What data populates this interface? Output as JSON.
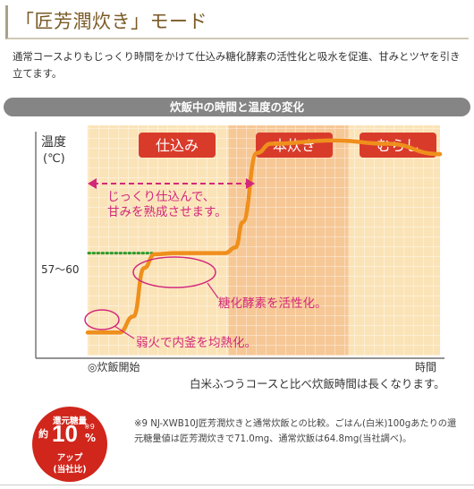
{
  "header": {
    "title": "「匠芳潤炊き」モード",
    "lead": "通常コースよりもじっくり時間をかけて仕込み糖化酵素の活性化と吸水を促進、甘みとツヤを引き立てます。"
  },
  "section_band": "炊飯中の時間と温度の変化",
  "chart_data": {
    "type": "line",
    "ylabel_line1": "温度",
    "ylabel_line2": "(℃)",
    "xlabel": "時間",
    "x_start_label": "◎炊飯開始",
    "y_marker_label": "57〜60",
    "phases": [
      {
        "label": "仕込み",
        "color": "#fbe3b8"
      },
      {
        "label": "本炊き",
        "color": "#f6c896"
      },
      {
        "label": "むらし",
        "color": "#fbe3b8"
      }
    ],
    "curve": [
      {
        "x": 0,
        "y": 0.1
      },
      {
        "x": 0.09,
        "y": 0.1
      },
      {
        "x": 0.13,
        "y": 0.17
      },
      {
        "x": 0.16,
        "y": 0.38
      },
      {
        "x": 0.19,
        "y": 0.44
      },
      {
        "x": 0.25,
        "y": 0.445
      },
      {
        "x": 0.39,
        "y": 0.445
      },
      {
        "x": 0.42,
        "y": 0.47
      },
      {
        "x": 0.44,
        "y": 0.58
      },
      {
        "x": 0.48,
        "y": 0.88
      },
      {
        "x": 0.52,
        "y": 0.92
      },
      {
        "x": 0.7,
        "y": 0.935
      },
      {
        "x": 0.85,
        "y": 0.92
      },
      {
        "x": 1.0,
        "y": 0.875
      }
    ],
    "annotations": [
      "じっくり仕込んで、",
      "甘みを熟成させます。",
      "糖化酵素を活性化。",
      "弱火で内釜を均熱化。"
    ],
    "colors": {
      "curve": "#ef8f1c",
      "accent": "#d2287a",
      "dots": "#2e9a2e"
    }
  },
  "caption": "白米ふつうコースと比べ炊飯時間は長くなります。",
  "badge": {
    "line1": "還元糖量",
    "prefix": "約",
    "value": "10",
    "note": "※9",
    "unit": "%",
    "line4": "アップ",
    "line5": "(当社比)"
  },
  "footnote": "※9 NJ-XWB10J匠芳潤炊きと通常炊飯との比較。ごはん(白米)100gあたりの還元糖量値は匠芳潤炊きで71.0mg、通常炊飯は64.8mg(当社調べ)。"
}
